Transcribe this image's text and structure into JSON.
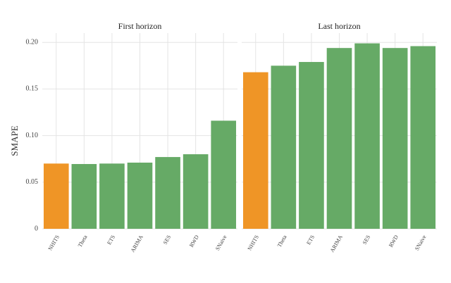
{
  "chart_data": [
    {
      "type": "bar",
      "title": "First horizon",
      "ylabel": "SMAPE",
      "categories": [
        "NHITS",
        "Theta",
        "ETS",
        "ARIMA",
        "SES",
        "RWD",
        "SNaive"
      ],
      "values": [
        0.07,
        0.0695,
        0.07,
        0.071,
        0.077,
        0.08,
        0.116
      ],
      "colors": [
        "#ef9526",
        "#66aa66",
        "#66aa66",
        "#66aa66",
        "#66aa66",
        "#66aa66",
        "#66aa66"
      ],
      "ylim": [
        0,
        0.21
      ],
      "yticks": [
        0,
        0.05,
        {
          "value": 0.1,
          "label": "0.10"
        },
        0.15,
        {
          "value": 0.2,
          "label": "0.20"
        }
      ],
      "grid": true
    },
    {
      "type": "bar",
      "title": "Last horizon",
      "categories": [
        "NHITS",
        "Theta",
        "ETS",
        "ARIMA",
        "SES",
        "RWD",
        "SNaive"
      ],
      "values": [
        0.168,
        0.175,
        0.179,
        0.194,
        0.199,
        0.194,
        0.196
      ],
      "colors": [
        "#ef9526",
        "#66aa66",
        "#66aa66",
        "#66aa66",
        "#66aa66",
        "#66aa66",
        "#66aa66"
      ],
      "ylim": [
        0,
        0.21
      ],
      "yticks": [
        0,
        0.05,
        {
          "value": 0.1,
          "label": "0.10"
        },
        0.15,
        {
          "value": 0.2,
          "label": "0.20"
        }
      ],
      "grid": true
    }
  ]
}
